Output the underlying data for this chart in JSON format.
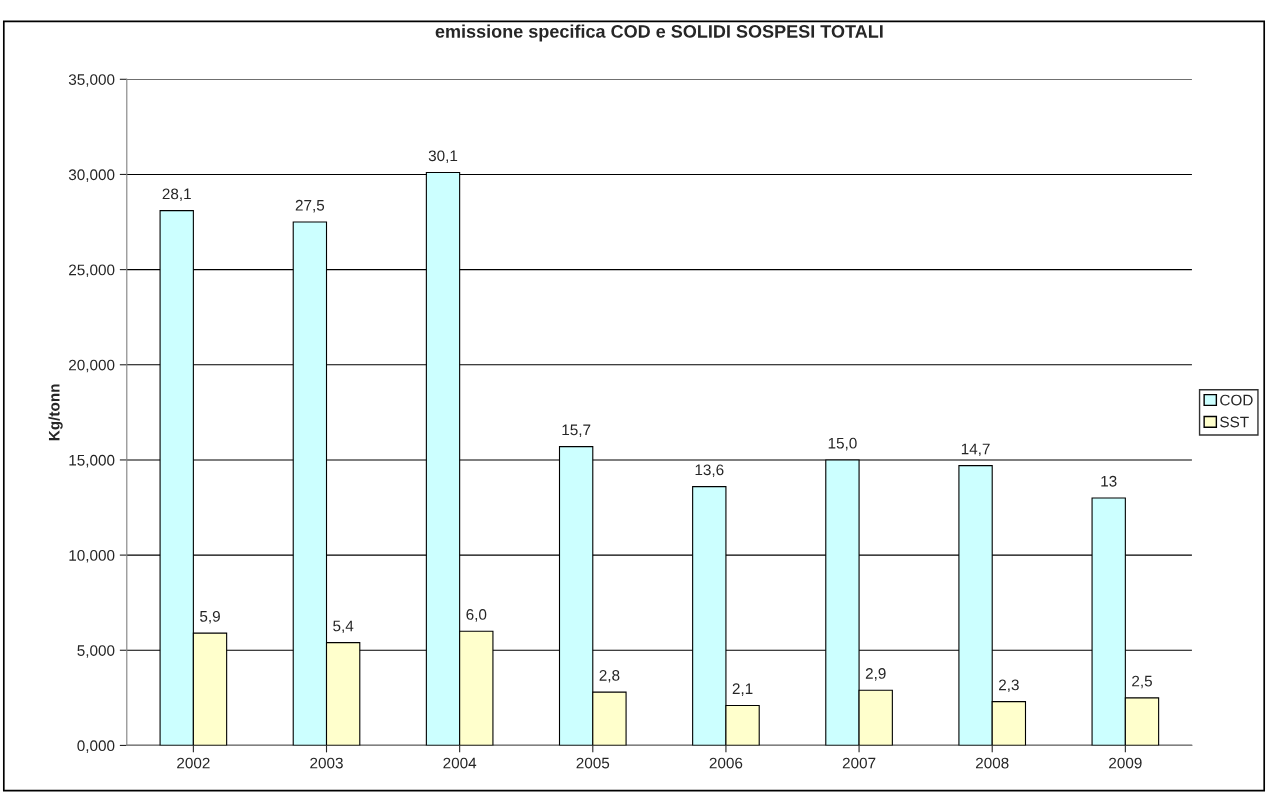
{
  "chart_data": {
    "type": "bar",
    "title": "emissione specifica COD e SOLIDI SOSPESI TOTALI",
    "ylabel": "Kg/tonn",
    "categories": [
      "2002",
      "2003",
      "2004",
      "2005",
      "2006",
      "2007",
      "2008",
      "2009"
    ],
    "series": [
      {
        "name": "COD",
        "color": "#ccffff",
        "values": [
          28.1,
          27.5,
          30.1,
          15.7,
          13.6,
          15.0,
          14.7,
          13
        ],
        "value_labels": [
          "28,1",
          "27,5",
          "30,1",
          "15,7",
          "13,6",
          "15,0",
          "14,7",
          "13"
        ]
      },
      {
        "name": "SST",
        "color": "#ffffcc",
        "values": [
          5.9,
          5.4,
          6.0,
          2.8,
          2.1,
          2.9,
          2.3,
          2.5
        ],
        "value_labels": [
          "5,9",
          "5,4",
          "6,0",
          "2,8",
          "2,1",
          "2,9",
          "2,3",
          "2,5"
        ]
      }
    ],
    "ylim": [
      0,
      35
    ],
    "yticks": [
      {
        "value": 0,
        "label": "0,000"
      },
      {
        "value": 5,
        "label": "5,000"
      },
      {
        "value": 10,
        "label": "10,000"
      },
      {
        "value": 15,
        "label": "15,000"
      },
      {
        "value": 20,
        "label": "20,000"
      },
      {
        "value": 25,
        "label": "25,000"
      },
      {
        "value": 30,
        "label": "30,000"
      },
      {
        "value": 35,
        "label": "35,000"
      }
    ],
    "grid": "y",
    "legend": "right"
  }
}
